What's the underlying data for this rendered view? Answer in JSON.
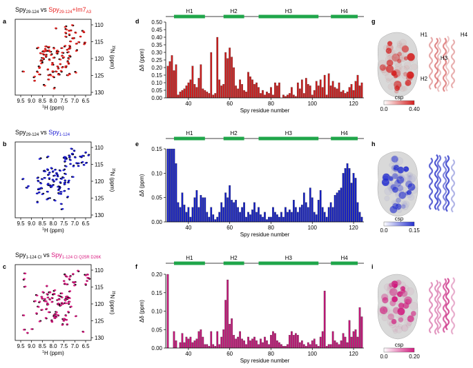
{
  "nmr_panels": [
    {
      "letter": "a",
      "title_prefix": "Spy",
      "title_prefix_sub": "29-124",
      "title_vs": " vs ",
      "title_compare": "Spy",
      "title_compare_sub": "29-124",
      "title_compare_suffix": "+Im7",
      "title_compare_suffix_sub": "A3",
      "compare_color": "#e8201e",
      "ref_color": "#000000",
      "x_label": "1H (ppm)",
      "y_label": "15N (ppm)",
      "x_ticks": [
        "9.5",
        "9.0",
        "8.5",
        "8.0",
        "7.5",
        "7.0",
        "6.5"
      ],
      "y_ticks": [
        "110",
        "115",
        "120",
        "125",
        "130"
      ]
    },
    {
      "letter": "b",
      "title_prefix": "Spy",
      "title_prefix_sub": "29-124",
      "title_vs": " vs ",
      "title_compare": "Spy",
      "title_compare_sub": "1-124",
      "title_compare_suffix": "",
      "title_compare_suffix_sub": "",
      "compare_color": "#1a1ad2",
      "ref_color": "#000000",
      "x_label": "1H (ppm)",
      "y_label": "15N (ppm)",
      "x_ticks": [
        "9.5",
        "9.0",
        "8.5",
        "8.0",
        "7.5",
        "7.0",
        "6.5"
      ],
      "y_ticks": [
        "110",
        "115",
        "120",
        "125",
        "130"
      ]
    },
    {
      "letter": "c",
      "title_prefix": "Spy",
      "title_prefix_sub": "1-124 Cl",
      "title_vs": " vs ",
      "title_compare": "Spy",
      "title_compare_sub": "1-124",
      "title_compare_suffix": "",
      "title_compare_suffix_sub": " Cl Q25R D26K",
      "compare_color": "#d8147d",
      "ref_color": "#000000",
      "x_label": "1H (ppm)",
      "y_label": "15N (ppm)",
      "x_ticks": [
        "9.5",
        "9.0",
        "8.5",
        "8.0",
        "7.5",
        "7.0",
        "6.5"
      ],
      "y_ticks": [
        "110",
        "115",
        "120",
        "125",
        "130"
      ]
    }
  ],
  "chart_data": [
    {
      "letter": "d",
      "type": "bar",
      "xlabel": "Spy residue number",
      "ylabel": "Δδ (ppm)",
      "ylim": [
        0,
        0.5
      ],
      "xlim": [
        29,
        125
      ],
      "x_ticks": [
        40,
        60,
        80,
        100,
        120
      ],
      "y_ticks": [
        "0.00",
        "0.05",
        "0.10",
        "0.15",
        "0.20",
        "0.25",
        "0.30",
        "0.35",
        "0.40",
        "0.45",
        "0.50"
      ],
      "color": "#cc1d1d",
      "helices": [
        {
          "name": "H1",
          "start": 33,
          "end": 48
        },
        {
          "name": "H2",
          "start": 57,
          "end": 67
        },
        {
          "name": "H3",
          "start": 74,
          "end": 103
        },
        {
          "name": "H4",
          "start": 109,
          "end": 122
        }
      ],
      "residues": [
        30,
        31,
        32,
        33,
        34,
        35,
        36,
        37,
        38,
        39,
        40,
        41,
        42,
        43,
        44,
        45,
        46,
        47,
        48,
        49,
        50,
        51,
        52,
        53,
        54,
        55,
        56,
        57,
        58,
        59,
        60,
        61,
        62,
        63,
        64,
        65,
        66,
        67,
        68,
        69,
        70,
        71,
        72,
        73,
        74,
        75,
        76,
        77,
        78,
        79,
        80,
        81,
        82,
        83,
        84,
        85,
        86,
        87,
        88,
        89,
        90,
        91,
        92,
        93,
        94,
        95,
        96,
        97,
        98,
        99,
        100,
        101,
        102,
        103,
        104,
        105,
        106,
        107,
        108,
        109,
        110,
        111,
        112,
        113,
        114,
        115,
        116,
        117,
        118,
        119,
        120,
        121,
        122,
        123,
        124
      ],
      "values": [
        0.21,
        0.24,
        0.28,
        0.18,
        0.22,
        0.02,
        0.04,
        0.05,
        0.06,
        0.08,
        0.1,
        0.12,
        0.21,
        0.09,
        0.07,
        0.13,
        0.22,
        0.06,
        0.05,
        0.04,
        0.03,
        0.3,
        0.02,
        0.03,
        0.4,
        0.12,
        0.08,
        0.09,
        0.3,
        0.26,
        0.33,
        0.27,
        0.2,
        0.08,
        0.06,
        0.12,
        0.09,
        0.05,
        0.04,
        0.17,
        0.14,
        0.12,
        0.09,
        0.1,
        0.07,
        0.03,
        0.05,
        0.02,
        0.04,
        0.03,
        0.07,
        0.02,
        0.1,
        0.08,
        0.1,
        0,
        0.02,
        0.01,
        0.02,
        0.03,
        0.07,
        0.02,
        0.01,
        0.1,
        0.06,
        0.12,
        0.03,
        0.13,
        0.09,
        0.08,
        0.02,
        0.05,
        0.11,
        0.08,
        0.12,
        0.07,
        0.15,
        0.02,
        0.16,
        0.08,
        0.11,
        0.07,
        0.06,
        0.1,
        0.04,
        0.05,
        0.03,
        0.04,
        0.07,
        0.09,
        0.05,
        0.11,
        0.15,
        0.08,
        0.1
      ]
    },
    {
      "letter": "e",
      "type": "bar",
      "xlabel": "Spy residue number",
      "ylabel": "Δδ (ppm)",
      "ylim": [
        0,
        0.15
      ],
      "xlim": [
        29,
        125
      ],
      "x_ticks": [
        40,
        60,
        80,
        100,
        120
      ],
      "y_ticks": [
        "0.00",
        "0.05",
        "0.10",
        "0.15"
      ],
      "color": "#1520c4",
      "helices": [
        {
          "name": "H1",
          "start": 33,
          "end": 48
        },
        {
          "name": "H2",
          "start": 57,
          "end": 67
        },
        {
          "name": "H3",
          "start": 74,
          "end": 103
        },
        {
          "name": "H4",
          "start": 109,
          "end": 122
        }
      ],
      "residues": [
        30,
        31,
        32,
        33,
        34,
        35,
        36,
        37,
        38,
        39,
        40,
        41,
        42,
        43,
        44,
        45,
        46,
        47,
        48,
        49,
        50,
        51,
        52,
        53,
        54,
        55,
        56,
        57,
        58,
        59,
        60,
        61,
        62,
        63,
        64,
        65,
        66,
        67,
        68,
        69,
        70,
        71,
        72,
        73,
        74,
        75,
        76,
        77,
        78,
        79,
        80,
        81,
        82,
        83,
        84,
        85,
        86,
        87,
        88,
        89,
        90,
        91,
        92,
        93,
        94,
        95,
        96,
        97,
        98,
        99,
        100,
        101,
        102,
        103,
        104,
        105,
        106,
        107,
        108,
        109,
        110,
        111,
        112,
        113,
        114,
        115,
        116,
        117,
        118,
        119,
        120,
        121,
        122,
        123,
        124
      ],
      "values": [
        0.15,
        0.15,
        0.15,
        0.15,
        0.12,
        0.04,
        0.03,
        0.06,
        0.035,
        0.02,
        0.03,
        0.01,
        0.03,
        0.05,
        0.065,
        0.03,
        0.055,
        0.05,
        0.05,
        0.02,
        0.01,
        0.03,
        0.015,
        0.005,
        0.01,
        0.02,
        0.04,
        0.03,
        0.06,
        0.05,
        0.075,
        0.045,
        0.04,
        0.045,
        0.03,
        0.02,
        0.03,
        0.04,
        0.01,
        0.02,
        0.015,
        0.025,
        0.04,
        0.02,
        0.03,
        0.015,
        0.01,
        0.02,
        0.005,
        0.01,
        0.01,
        0.03,
        0.02,
        0.015,
        0.01,
        0.02,
        0.01,
        0.03,
        0.02,
        0.025,
        0.02,
        0.045,
        0.03,
        0.02,
        0.03,
        0.035,
        0.06,
        0.04,
        0.03,
        0.07,
        0.05,
        0.02,
        0.015,
        0.045,
        0.065,
        0.03,
        0.02,
        0.01,
        0.03,
        0.04,
        0.03,
        0.055,
        0.06,
        0.065,
        0.07,
        0.1,
        0.11,
        0.12,
        0.11,
        0.08,
        0.1,
        0.09,
        0.04,
        0.02,
        0.01
      ]
    },
    {
      "letter": "f",
      "type": "bar",
      "xlabel": "Spy residue number",
      "ylabel": "Δδ (ppm)",
      "ylim": [
        0,
        0.2
      ],
      "xlim": [
        29,
        125
      ],
      "x_ticks": [
        40,
        60,
        80,
        100,
        120
      ],
      "y_ticks": [
        "0.00",
        "0.05",
        "0.10",
        "0.15",
        "0.20"
      ],
      "color": "#c21678",
      "helices": [
        {
          "name": "H1",
          "start": 33,
          "end": 48
        },
        {
          "name": "H2",
          "start": 57,
          "end": 67
        },
        {
          "name": "H3",
          "start": 74,
          "end": 103
        },
        {
          "name": "H4",
          "start": 109,
          "end": 122
        }
      ],
      "residues": [
        30,
        31,
        32,
        33,
        34,
        35,
        36,
        37,
        38,
        39,
        40,
        41,
        42,
        43,
        44,
        45,
        46,
        47,
        48,
        49,
        50,
        51,
        52,
        53,
        54,
        55,
        56,
        57,
        58,
        59,
        60,
        61,
        62,
        63,
        64,
        65,
        66,
        67,
        68,
        69,
        70,
        71,
        72,
        73,
        74,
        75,
        76,
        77,
        78,
        79,
        80,
        81,
        82,
        83,
        84,
        85,
        86,
        87,
        88,
        89,
        90,
        91,
        92,
        93,
        94,
        95,
        96,
        97,
        98,
        99,
        100,
        101,
        102,
        103,
        104,
        105,
        106,
        107,
        108,
        109,
        110,
        111,
        112,
        113,
        114,
        115,
        116,
        117,
        118,
        119,
        120,
        121,
        122,
        123,
        124
      ],
      "values": [
        0.2,
        0,
        0,
        0.045,
        0.02,
        0,
        0.015,
        0.04,
        0.015,
        0.03,
        0.025,
        0.03,
        0.015,
        0.02,
        0.025,
        0.045,
        0.05,
        0.03,
        0.01,
        0.01,
        0.005,
        0.045,
        0.01,
        0.005,
        0.045,
        0.01,
        0.03,
        0.05,
        0.13,
        0.185,
        0.065,
        0.08,
        0.035,
        0.025,
        0.03,
        0.045,
        0.025,
        0.02,
        0.01,
        0.03,
        0.02,
        0.025,
        0.03,
        0.02,
        0.01,
        0.025,
        0.015,
        0.03,
        0.02,
        0.01,
        0.035,
        0.045,
        0.04,
        0.02,
        0.015,
        0.01,
        0.005,
        0.005,
        0.01,
        0.035,
        0.045,
        0.035,
        0.04,
        0.035,
        0.015,
        0.02,
        0.01,
        0.005,
        0.015,
        0.01,
        0.02,
        0.025,
        0.01,
        0.005,
        0.03,
        0.045,
        0.155,
        0.005,
        0.01,
        0.01,
        0.045,
        0.02,
        0.015,
        0.01,
        0.02,
        0.04,
        0.03,
        0.015,
        0.075,
        0.03,
        0.045,
        0.05,
        0.03,
        0.11,
        0.085
      ]
    }
  ],
  "structure_panels": [
    {
      "letter": "g",
      "scale_label": "csp",
      "scale_min": "0.0",
      "scale_max": "0.40",
      "color": "#d41e1e",
      "helix_labels": [
        "H1",
        "H2",
        "H3",
        "H4"
      ]
    },
    {
      "letter": "h",
      "scale_label": "csp",
      "scale_min": "0.0",
      "scale_max": "0.15",
      "color": "#2530d0",
      "helix_labels": []
    },
    {
      "letter": "i",
      "scale_label": "csp",
      "scale_min": "0.0",
      "scale_max": "0.20",
      "color": "#d11a7e",
      "helix_labels": []
    }
  ]
}
